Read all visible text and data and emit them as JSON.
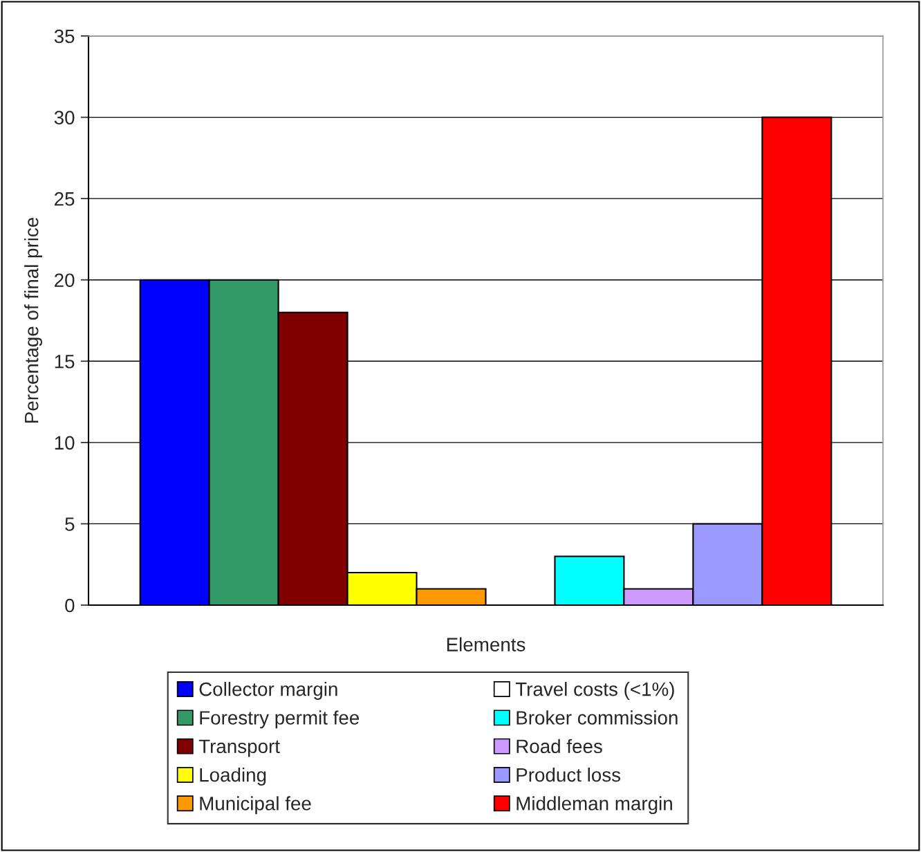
{
  "chart_data": {
    "type": "bar",
    "xlabel": "Elements",
    "ylabel": "Percentage of final price",
    "categories": [
      null
    ],
    "series": [
      {
        "name": "Collector margin",
        "color": "#0000ff",
        "values": [
          20
        ]
      },
      {
        "name": "Forestry permit fee",
        "color": "#339966",
        "values": [
          20
        ]
      },
      {
        "name": "Transport",
        "color": "#800000",
        "values": [
          18
        ]
      },
      {
        "name": "Loading",
        "color": "#ffff00",
        "values": [
          2
        ]
      },
      {
        "name": "Municipal fee",
        "color": "#ff9900",
        "values": [
          1
        ]
      },
      {
        "name": "Travel costs (<1%)",
        "color": "#ffffff",
        "values": [
          null
        ]
      },
      {
        "name": "Broker commission",
        "color": "#00ffff",
        "values": [
          3
        ]
      },
      {
        "name": "Road fees",
        "color": "#cc99ff",
        "values": [
          1
        ]
      },
      {
        "name": "Product loss",
        "color": "#9999ff",
        "values": [
          5
        ]
      },
      {
        "name": "Middleman margin",
        "color": "#ff0000",
        "values": [
          30
        ]
      }
    ],
    "ylim": [
      0,
      35
    ],
    "yticks": [
      0,
      5,
      10,
      15,
      20,
      25,
      30,
      35
    ],
    "grid": "y",
    "legend": "bottom"
  }
}
